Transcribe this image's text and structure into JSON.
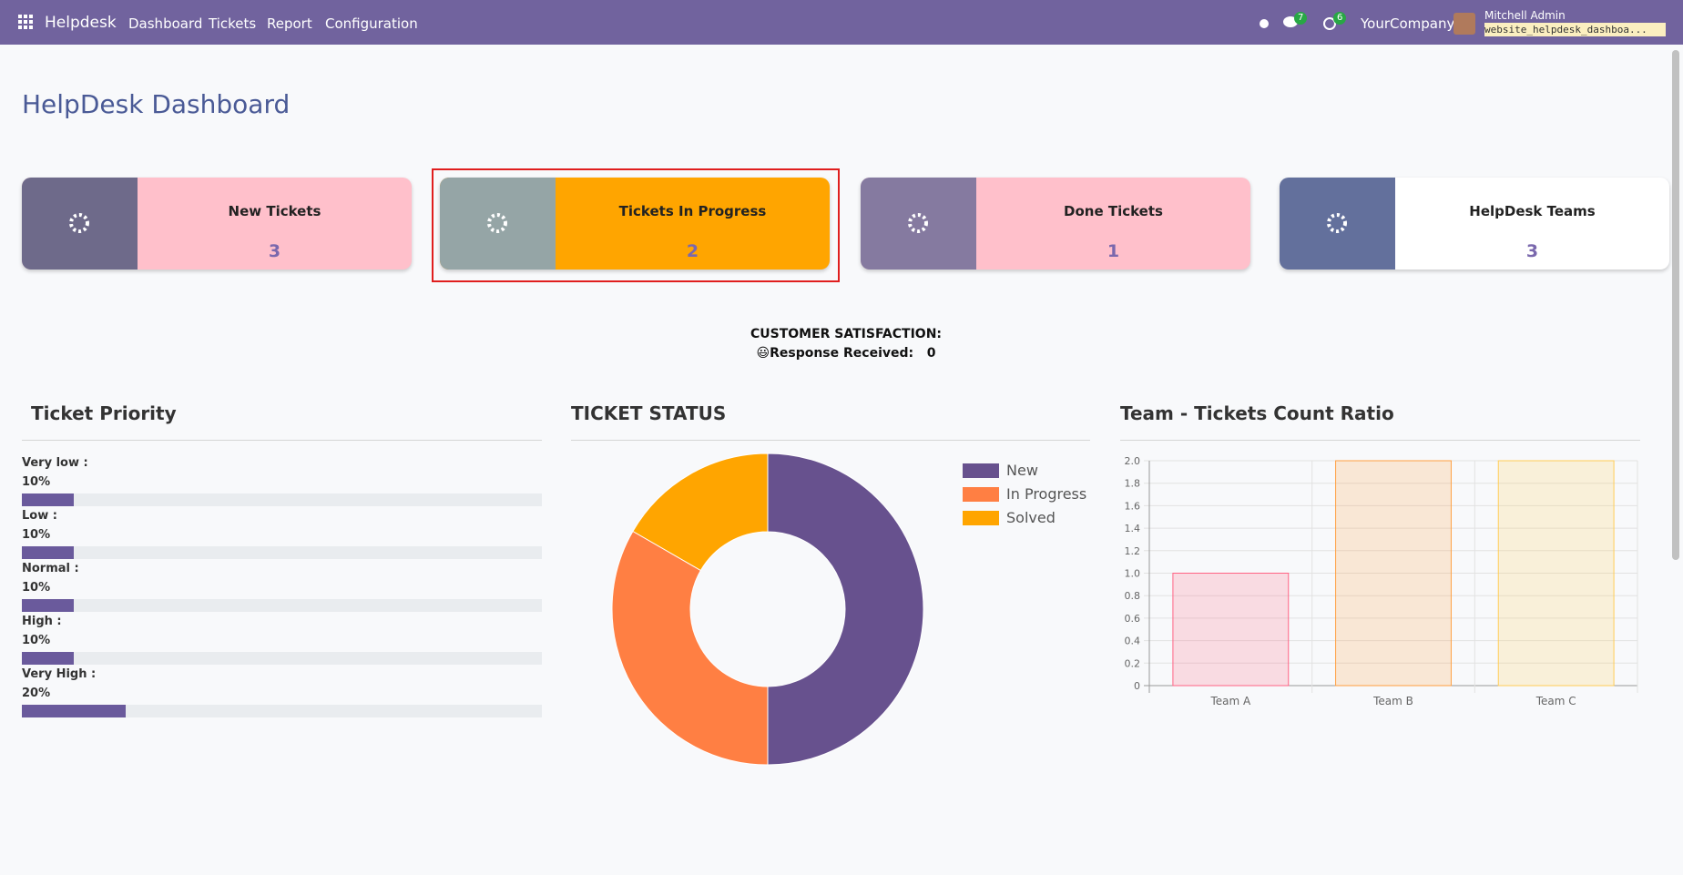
{
  "navbar": {
    "app": "Helpdesk",
    "menu": [
      "Dashboard",
      "Tickets",
      "Report",
      "Configuration"
    ],
    "chat_badge": "7",
    "activity_badge": "6",
    "company": "YourCompany",
    "user": "Mitchell Admin",
    "database": "website_helpdesk_dashboa..."
  },
  "header": {
    "title": "HelpDesk Dashboard"
  },
  "cards": [
    {
      "label": "New Tickets",
      "value": 3
    },
    {
      "label": "Tickets In Progress",
      "value": 2
    },
    {
      "label": "Done Tickets",
      "value": 1
    },
    {
      "label": "HelpDesk Teams",
      "value": 3
    }
  ],
  "satisfaction": {
    "title": "CUSTOMER SATISFACTION:",
    "label": "😃Response Received:",
    "value": 0
  },
  "ticket_priority": {
    "type": "progress",
    "title": "Ticket Priority",
    "xlim": [
      0,
      100
    ],
    "color": "#6a5a9c",
    "items": [
      {
        "label": "Very low :",
        "value": 10,
        "value_label": "10%"
      },
      {
        "label": "Low :",
        "value": 10,
        "value_label": "10%"
      },
      {
        "label": "Normal :",
        "value": 10,
        "value_label": "10%"
      },
      {
        "label": "High :",
        "value": 10,
        "value_label": "10%"
      },
      {
        "label": "Very High :",
        "value": 20,
        "value_label": "20%"
      }
    ]
  },
  "ticket_status": {
    "type": "pie",
    "title": "TICKET STATUS",
    "categories": [
      "New",
      "In Progress",
      "Solved"
    ],
    "values": [
      3,
      2,
      1
    ],
    "colors": [
      "#67518e",
      "#ff7f43",
      "#ffa500"
    ]
  },
  "team_ratio": {
    "type": "bar",
    "title": "Team - Tickets Count Ratio",
    "categories": [
      "Team A",
      "Team B",
      "Team C"
    ],
    "values": [
      1,
      2,
      2
    ],
    "colors": [
      "rgba(255,99,132,0.2)",
      "rgba(255,159,64,0.2)",
      "rgba(255,205,86,0.2)"
    ],
    "border_colors": [
      "#ff6384",
      "#ff9f40",
      "#ffcd56"
    ],
    "ylim": [
      0,
      2
    ],
    "yticks": [
      0,
      0.2,
      0.4,
      0.6,
      0.8,
      {
        "value": 1,
        "label": "1.0"
      },
      1.2,
      1.4,
      1.6,
      1.8,
      {
        "value": 2,
        "label": "2.0"
      }
    ],
    "grid": true
  }
}
